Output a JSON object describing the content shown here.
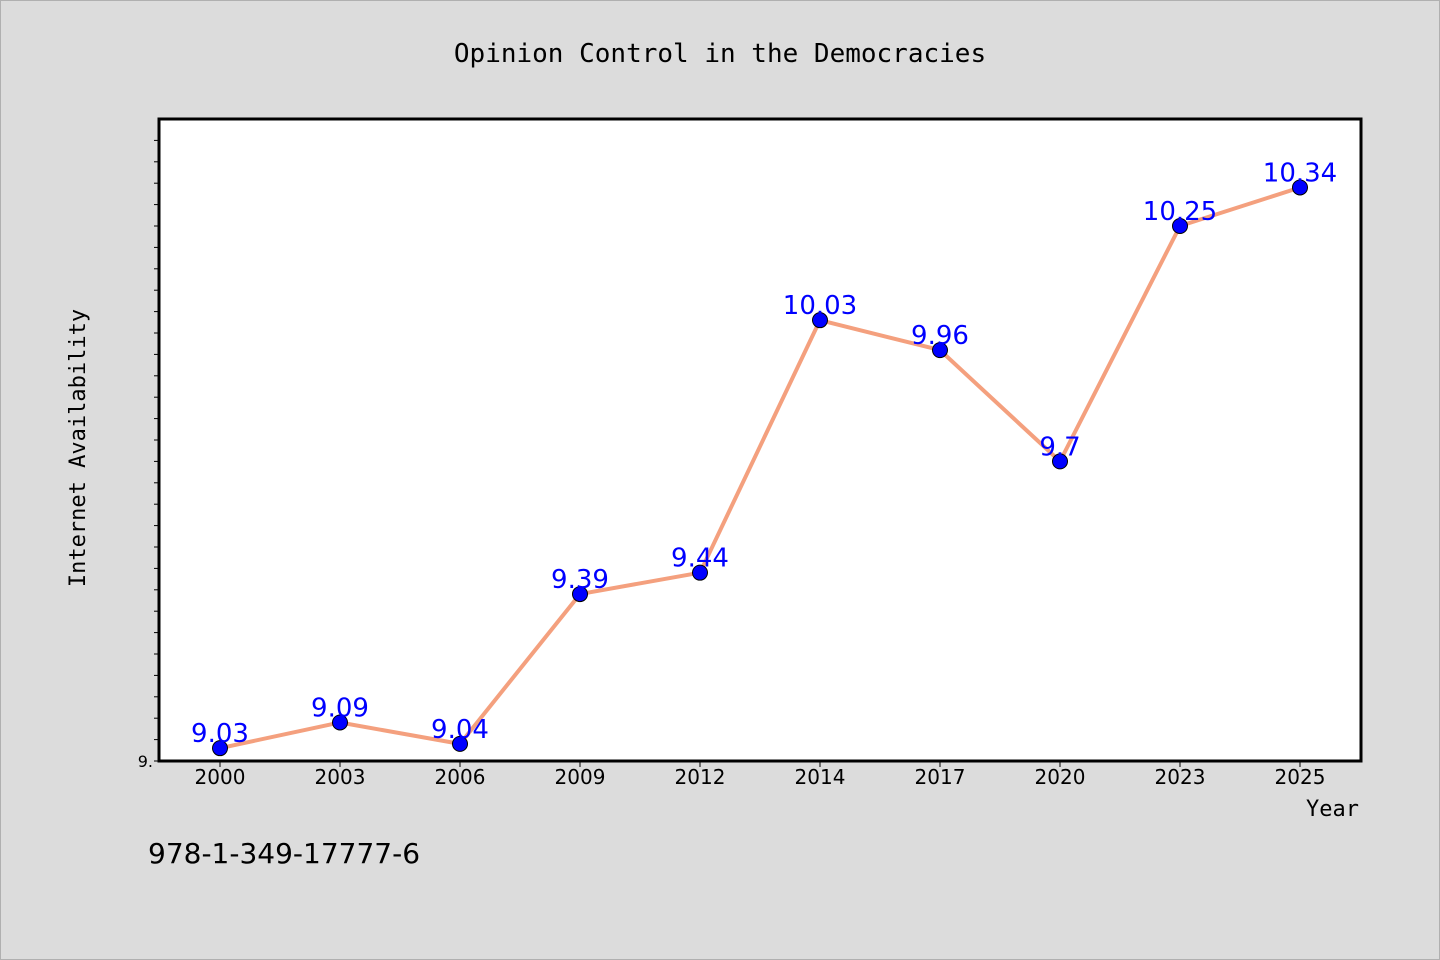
{
  "chart_data": {
    "type": "line",
    "title": "Opinion Control in the Democracies",
    "xlabel": "Year",
    "ylabel": "Internet Availability",
    "categories": [
      "2000",
      "2003",
      "2006",
      "2009",
      "2012",
      "2014",
      "2017",
      "2020",
      "2023",
      "2025"
    ],
    "series": [
      {
        "values": [
          9.03,
          9.09,
          9.04,
          9.39,
          9.44,
          10.03,
          9.96,
          9.7,
          10.25,
          10.34
        ],
        "labels": [
          "9.03",
          "9.09",
          "9.04",
          "9.39",
          "9.44",
          "10.03",
          "9.96",
          "9.7",
          "10.25",
          "10.34"
        ]
      }
    ],
    "ylim": [
      9.0,
      10.5
    ],
    "y_tick_label": "9.",
    "grid": false,
    "line_color": "#f4a07e",
    "marker_color": "#0000ff",
    "label_color": "#0000ff"
  },
  "footer_text": "978-1-349-17777-6"
}
